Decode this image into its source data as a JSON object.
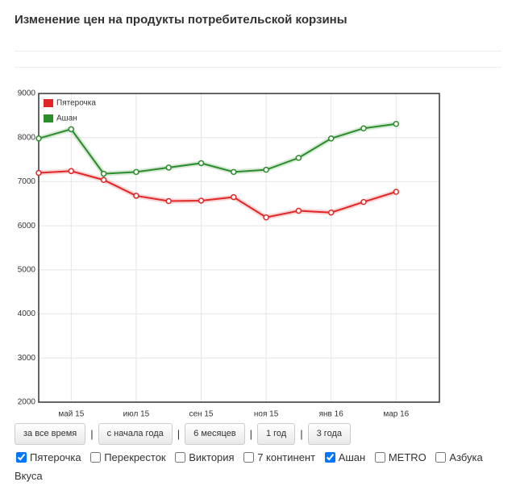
{
  "header": {
    "title": "Изменение цен на продукты потребительской корзины"
  },
  "chart_data": {
    "type": "line",
    "categories": [
      null,
      "май 15",
      null,
      "июл 15",
      null,
      "сен 15",
      null,
      "ноя 15",
      null,
      "янв 16",
      null,
      "мар 16"
    ],
    "series": [
      {
        "name": "Пятерочка",
        "color": "#e02626",
        "values": [
          7200,
          7240,
          7040,
          6680,
          6560,
          6570,
          6650,
          6190,
          6340,
          6300,
          6540,
          6770
        ]
      },
      {
        "name": "Ашан",
        "color": "#2b8c2b",
        "values": [
          7980,
          8190,
          7180,
          7220,
          7320,
          7420,
          7220,
          7270,
          7540,
          7980,
          8210,
          8310
        ]
      }
    ],
    "ylim": [
      2000,
      9000
    ],
    "yticks": [
      2000,
      3000,
      4000,
      5000,
      6000,
      7000,
      8000,
      9000
    ],
    "grid": true,
    "legend": "top-left"
  },
  "controls": {
    "buttons": [
      "за все время",
      "с начала года",
      "6 месяцев",
      "1 год",
      "3 года"
    ],
    "separator": "|",
    "checkboxes": [
      {
        "label": "Пятерочка",
        "checked": true
      },
      {
        "label": "Перекресток",
        "checked": false
      },
      {
        "label": "Виктория",
        "checked": false
      },
      {
        "label": "7 континент",
        "checked": false
      },
      {
        "label": "Ашан",
        "checked": true
      },
      {
        "label": "METRO",
        "checked": false
      },
      {
        "label": "Азбука Вкуса",
        "checked": false
      }
    ]
  }
}
